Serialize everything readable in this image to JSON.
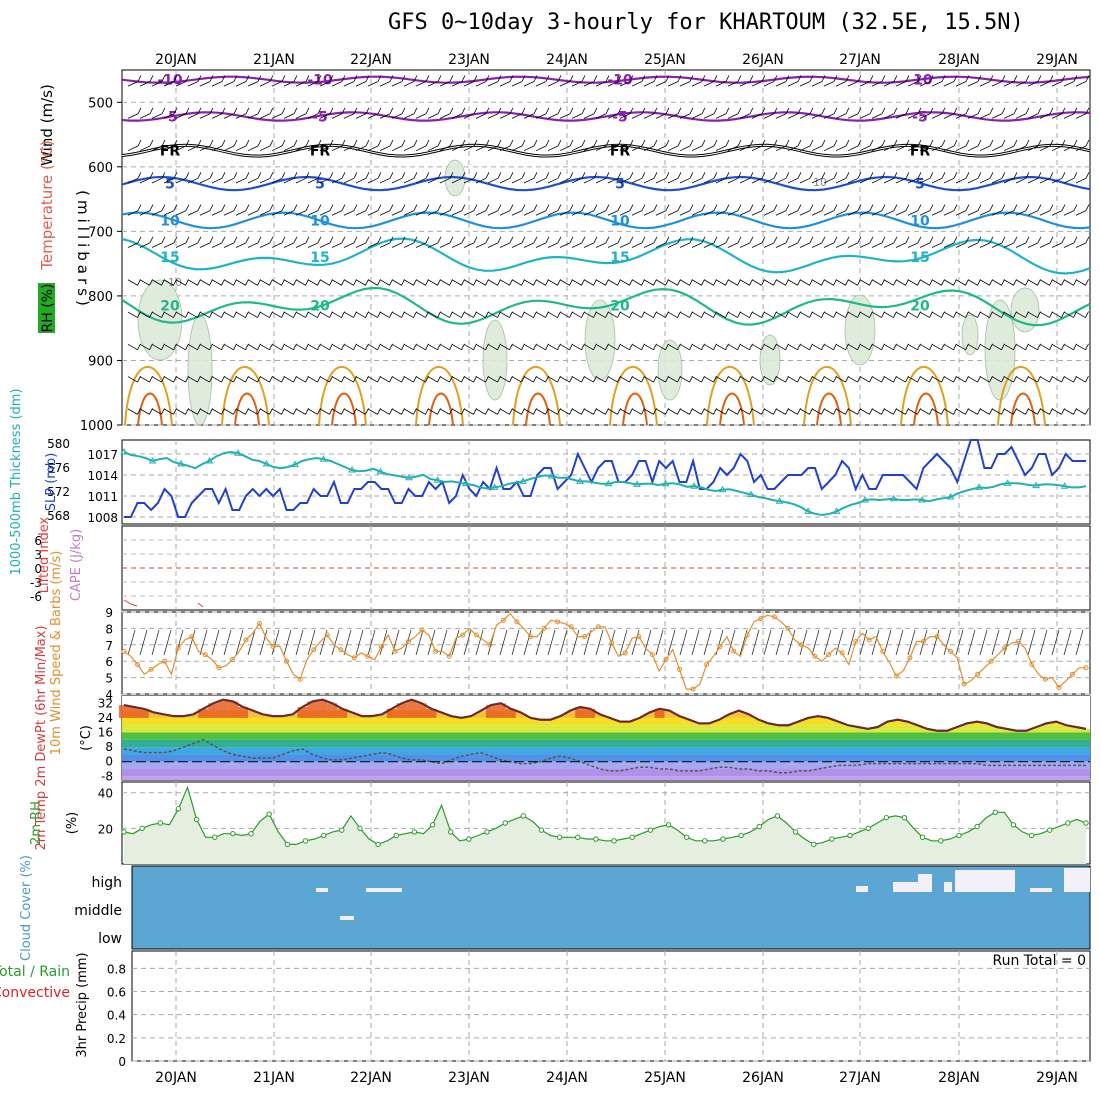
{
  "title": "GFS 0~10day 3-hourly for KHARTOUM (32.5E, 15.5N)",
  "chart_data": [
    {
      "type": "line",
      "panel": "upper-air",
      "days": [
        "20JAN",
        "21JAN",
        "22JAN",
        "23JAN",
        "24JAN",
        "25JAN",
        "26JAN",
        "27JAN",
        "28JAN",
        "29JAN"
      ],
      "y_axis_label": "(millibars)",
      "y_ticks": [
        500,
        600,
        700,
        800,
        900,
        1000
      ],
      "ylim": [
        450,
        1000
      ],
      "side_labels": [
        "Wind (m/s)",
        "Temperature (°C)",
        "RH (%)"
      ],
      "temperature_contours": [
        {
          "value": "-10",
          "pressure": 465,
          "color": "#8a1fb0"
        },
        {
          "value": "-5",
          "pressure": 522,
          "color": "#8a1fb0"
        },
        {
          "value": "FR",
          "pressure": 575,
          "color": "#000000"
        },
        {
          "value": "5",
          "pressure": 626,
          "color": "#1f4fd0"
        },
        {
          "value": "10",
          "pressure": 683,
          "color": "#1f8fe0"
        },
        {
          "value": "15",
          "pressure": 740,
          "color": "#1fb3c8"
        },
        {
          "value": "20",
          "pressure": 815,
          "color": "#1fb88a"
        }
      ],
      "rh_contour_label": "10",
      "rh_contour_label_2": "10"
    },
    {
      "type": "line",
      "panel": "slp-thickness",
      "left_axis_label": "1000-500mb Thickness (dm)",
      "right_axis_label": "SLP (mb)",
      "thickness_ticks": [
        568,
        572,
        576,
        580
      ],
      "slp_ticks": [
        1008,
        1011,
        1014,
        1017
      ],
      "thickness_ylim": [
        566.5,
        580.5
      ],
      "slp_ylim": [
        1007,
        1019
      ],
      "series": [
        {
          "name": "SLP (mb)",
          "color": "#2040d0",
          "values": [
            1008,
            1008,
            1010,
            1010,
            1009,
            1010,
            1012,
            1011,
            1008,
            1008,
            1010,
            1011,
            1012,
            1012,
            1010,
            1012,
            1009,
            1009,
            1011,
            1012,
            1011,
            1012,
            1011,
            1012,
            1009,
            1009,
            1010,
            1010,
            1012,
            1011,
            1011,
            1013,
            1010,
            1010,
            1012,
            1012,
            1013,
            1013,
            1012,
            1012,
            1010,
            1010,
            1012,
            1011,
            1011,
            1013,
            1012,
            1013,
            1010,
            1011,
            1014,
            1012,
            1011,
            1013,
            1012,
            1015,
            1012,
            1012,
            1013,
            1011,
            1011,
            1014,
            1015,
            1015,
            1012,
            1013,
            1014,
            1017,
            1015,
            1013,
            1015,
            1016,
            1016,
            1013,
            1013,
            1014,
            1016,
            1016,
            1013,
            1016,
            1015,
            1016,
            1013,
            1013,
            1016,
            1012,
            1012,
            1013,
            1015,
            1014,
            1015,
            1017,
            1016,
            1013,
            1014,
            1012,
            1012,
            1013,
            1014,
            1014,
            1014,
            1015,
            1015,
            1012,
            1013,
            1014,
            1016,
            1015,
            1012,
            1014,
            1012,
            1012,
            1014,
            1014,
            1014,
            1014,
            1013,
            1012,
            1015,
            1016,
            1017,
            1016,
            1015,
            1013,
            1016,
            1019,
            1019,
            1015,
            1015,
            1017,
            1017,
            1018,
            1016,
            1014,
            1015,
            1017,
            1017,
            1014,
            1015,
            1017,
            1016,
            1016,
            1016
          ]
        },
        {
          "name": "1000-500mb Thickness (dm)",
          "color": "#20b0b0",
          "values": [
            578.5,
            578,
            577.8,
            577.5,
            577,
            577.3,
            577.5,
            576.8,
            576.5,
            576.2,
            575.8,
            576.5,
            577,
            577.8,
            578.3,
            578.5,
            578.3,
            577.8,
            577.2,
            577,
            576.5,
            576,
            575.8,
            576,
            576.4,
            577,
            577.3,
            577.5,
            577.3,
            577,
            576.5,
            576,
            575.5,
            575.3,
            575.4,
            575.7,
            575.2,
            574.8,
            574.6,
            574.4,
            574.2,
            574.4,
            574.7,
            574,
            573.8,
            573.5,
            573.6,
            573.4,
            573.2,
            573,
            572.6,
            572.4,
            572.6,
            572.8,
            573.2,
            573.4,
            573.6,
            574,
            574.3,
            574.6,
            574.5,
            574.2,
            574.2,
            573.9,
            573.6,
            573.6,
            573.4,
            573.2,
            573.2,
            573.5,
            573.5,
            573.3,
            573.1,
            573.2,
            573.2,
            573,
            573.2,
            573.3,
            573.1,
            572.7,
            572.8,
            572.6,
            572.2,
            572,
            572.2,
            572.3,
            572,
            571.7,
            571.4,
            571,
            570.8,
            570.5,
            570.3,
            570.1,
            569.8,
            569.3,
            568.6,
            568.2,
            568,
            568.2,
            568.6,
            569.2,
            569.7,
            570,
            570.5,
            570.6,
            570.5,
            570.6,
            570.7,
            570.5,
            570.5,
            570.6,
            570.5,
            570.3,
            570.6,
            570.8,
            571,
            571.6,
            572,
            572.3,
            572.6,
            572.5,
            572.7,
            573.1,
            573.3,
            573.3,
            573.2,
            573,
            572.9,
            573.1,
            573.1,
            573,
            572.8,
            572.6,
            572.6,
            572.8
          ]
        }
      ]
    },
    {
      "type": "line",
      "panel": "stability",
      "left_axis_label": "Lifted Index",
      "right_axis_label": "CAPE (J/kg)",
      "ticks": [
        "6",
        "3",
        "0",
        "-3",
        "-6"
      ],
      "ylim": [
        -6,
        6
      ]
    },
    {
      "type": "line",
      "panel": "wind10m",
      "axis_label": "10m Wind Speed & Barbs (m/s)",
      "y_ticks": [
        4,
        5,
        6,
        7,
        8,
        9
      ],
      "ylim": [
        4,
        9
      ],
      "series": [
        {
          "name": "10m Wind Speed",
          "color": "#e09030",
          "values": [
            6.6,
            6.3,
            5.8,
            5.2,
            5.5,
            5.8,
            6,
            5.2,
            6.8,
            7.3,
            7.5,
            6.6,
            6.4,
            6.1,
            5.6,
            5.7,
            6.1,
            6.6,
            7.3,
            7.7,
            8.3,
            7.4,
            6.9,
            6.9,
            6,
            5.2,
            4.9,
            6.1,
            6.7,
            7.2,
            7.6,
            7,
            6.7,
            6.4,
            6.2,
            6.5,
            6.3,
            6.1,
            6.9,
            7.6,
            6.6,
            6.8,
            7.2,
            7.5,
            7.9,
            7.6,
            6.6,
            6.6,
            6.3,
            7.4,
            7.6,
            8,
            7.6,
            7.3,
            7,
            8.2,
            8.5,
            8.9,
            8.4,
            8,
            7.5,
            7.5,
            8,
            8.5,
            8.4,
            8.3,
            8.1,
            7.5,
            7.5,
            7.8,
            8.1,
            8.1,
            7.1,
            6.3,
            6.5,
            7.4,
            7.5,
            6.8,
            6.4,
            5.4,
            6.1,
            6.7,
            5.5,
            4.3,
            4.3,
            4.6,
            5.8,
            6.3,
            6.9,
            7.5,
            6.6,
            6.3,
            7.6,
            8.4,
            8.6,
            8.8,
            8.7,
            8.4,
            8,
            7.3,
            7,
            6.8,
            6.3,
            6,
            6.4,
            6.8,
            6.5,
            5.8,
            7.2,
            7.7,
            7.3,
            7.5,
            6.6,
            5.9,
            5.1,
            5.4,
            6.2,
            7.2,
            7.2,
            7.5,
            7.5,
            7,
            6.6,
            6.2,
            4.6,
            4.8,
            5.2,
            5.6,
            6,
            6.4,
            6.8,
            7.1,
            7.2,
            6.8,
            5.8,
            5.2,
            4.9,
            5,
            4.4,
            4.8,
            5.2,
            5.6,
            5.6
          ]
        }
      ]
    },
    {
      "type": "area",
      "panel": "temperature",
      "left_axis_label": "2m Temp 2m DewPt (6hr Min/Max)",
      "right_axis_label": "(°C)",
      "y_ticks": [
        "32",
        "24",
        "16",
        "8",
        "0",
        "-8"
      ],
      "ylim": [
        -10,
        36
      ],
      "series": [
        {
          "name": "2m Temp",
          "color": "#000000",
          "values": [
            31,
            30,
            29,
            27,
            26,
            25,
            25,
            26,
            29,
            32,
            34,
            33,
            30,
            28,
            26,
            25,
            25,
            26,
            30,
            33,
            34,
            32,
            29,
            27,
            25,
            25,
            26,
            29,
            32,
            34,
            32,
            29,
            27,
            25,
            24,
            25,
            28,
            31,
            32,
            29,
            27,
            24,
            23,
            23,
            25,
            28,
            30,
            29,
            26,
            24,
            22,
            22,
            24,
            27,
            29,
            28,
            25,
            23,
            21,
            21,
            23,
            26,
            28,
            26,
            23,
            21,
            20,
            20,
            22,
            24,
            25,
            24,
            22,
            20,
            19,
            18,
            19,
            22,
            23,
            22,
            20,
            18,
            17,
            17,
            19,
            21,
            22,
            21,
            19,
            18,
            17,
            17,
            19,
            21,
            22,
            20,
            19,
            18
          ]
        },
        {
          "name": "2m DewPt",
          "color": "#555555",
          "values": [
            7,
            6,
            5,
            5,
            5,
            6,
            8,
            10,
            12,
            9,
            6,
            4,
            3,
            2,
            2,
            2,
            4,
            6,
            7,
            4,
            2,
            1,
            1,
            2,
            3,
            4,
            5,
            4,
            2,
            1,
            1,
            0,
            -1,
            1,
            3,
            4,
            5,
            3,
            1,
            0,
            -1,
            -1,
            0,
            2,
            3,
            2,
            0,
            -2,
            -4,
            -5,
            -5,
            -4,
            -3,
            -3,
            -4,
            -4,
            -5,
            -5,
            -5,
            -4,
            -3,
            -3,
            -4,
            -4,
            -5,
            -5,
            -6,
            -6,
            -5,
            -5,
            -4,
            -3,
            -2,
            -2,
            -2,
            -1,
            -1,
            -1,
            -1,
            -1,
            -1,
            -1,
            -1,
            -1,
            -1,
            -1,
            -1,
            -2,
            -2,
            -2,
            -2,
            -2,
            -2,
            -2,
            -2,
            -2,
            -2,
            -2
          ]
        }
      ]
    },
    {
      "type": "area",
      "panel": "relative-humidity",
      "left_axis_label": "2m RH",
      "right_axis_label": "(%)",
      "y_ticks": [
        20,
        40
      ],
      "ylim": [
        0,
        46
      ],
      "series": [
        {
          "name": "2m RH",
          "color": "#2e9a2e",
          "values": [
            18,
            17,
            20,
            22,
            23,
            22,
            31,
            43,
            25,
            15,
            15,
            17,
            17,
            16,
            17,
            24,
            28,
            18,
            11,
            11,
            13,
            14,
            16,
            18,
            19,
            27,
            20,
            14,
            11,
            13,
            16,
            17,
            18,
            17,
            22,
            33,
            18,
            13,
            14,
            16,
            18,
            20,
            23,
            25,
            27,
            24,
            19,
            16,
            15,
            15,
            15,
            14,
            14,
            13,
            13,
            14,
            15,
            17,
            19,
            21,
            22,
            19,
            15,
            13,
            13,
            13,
            14,
            15,
            16,
            18,
            21,
            25,
            27,
            23,
            18,
            14,
            11,
            12,
            14,
            15,
            16,
            18,
            20,
            23,
            26,
            27,
            26,
            20,
            15,
            13,
            13,
            14,
            16,
            18,
            21,
            26,
            29,
            29,
            22,
            18,
            16,
            17,
            19,
            21,
            23,
            25,
            23
          ]
        }
      ]
    },
    {
      "type": "heatmap",
      "panel": "cloud-cover",
      "left_axis_label": "Cloud Cover (%)",
      "levels": [
        "high",
        "middle",
        "low"
      ],
      "background_color": "#5ba6d2"
    },
    {
      "type": "bar",
      "panel": "precipitation",
      "left_axis_label": "3hr Precip (mm)",
      "legend_labels": [
        "Total / Rain",
        "Convective"
      ],
      "legend_colors": [
        "#2e9a2e",
        "#e02020"
      ],
      "y_ticks": [
        "0",
        "0.2",
        "0.4",
        "0.6",
        "0.8"
      ],
      "ylim": [
        0,
        0.95
      ],
      "run_total": "Run Total = 0",
      "values": []
    }
  ]
}
